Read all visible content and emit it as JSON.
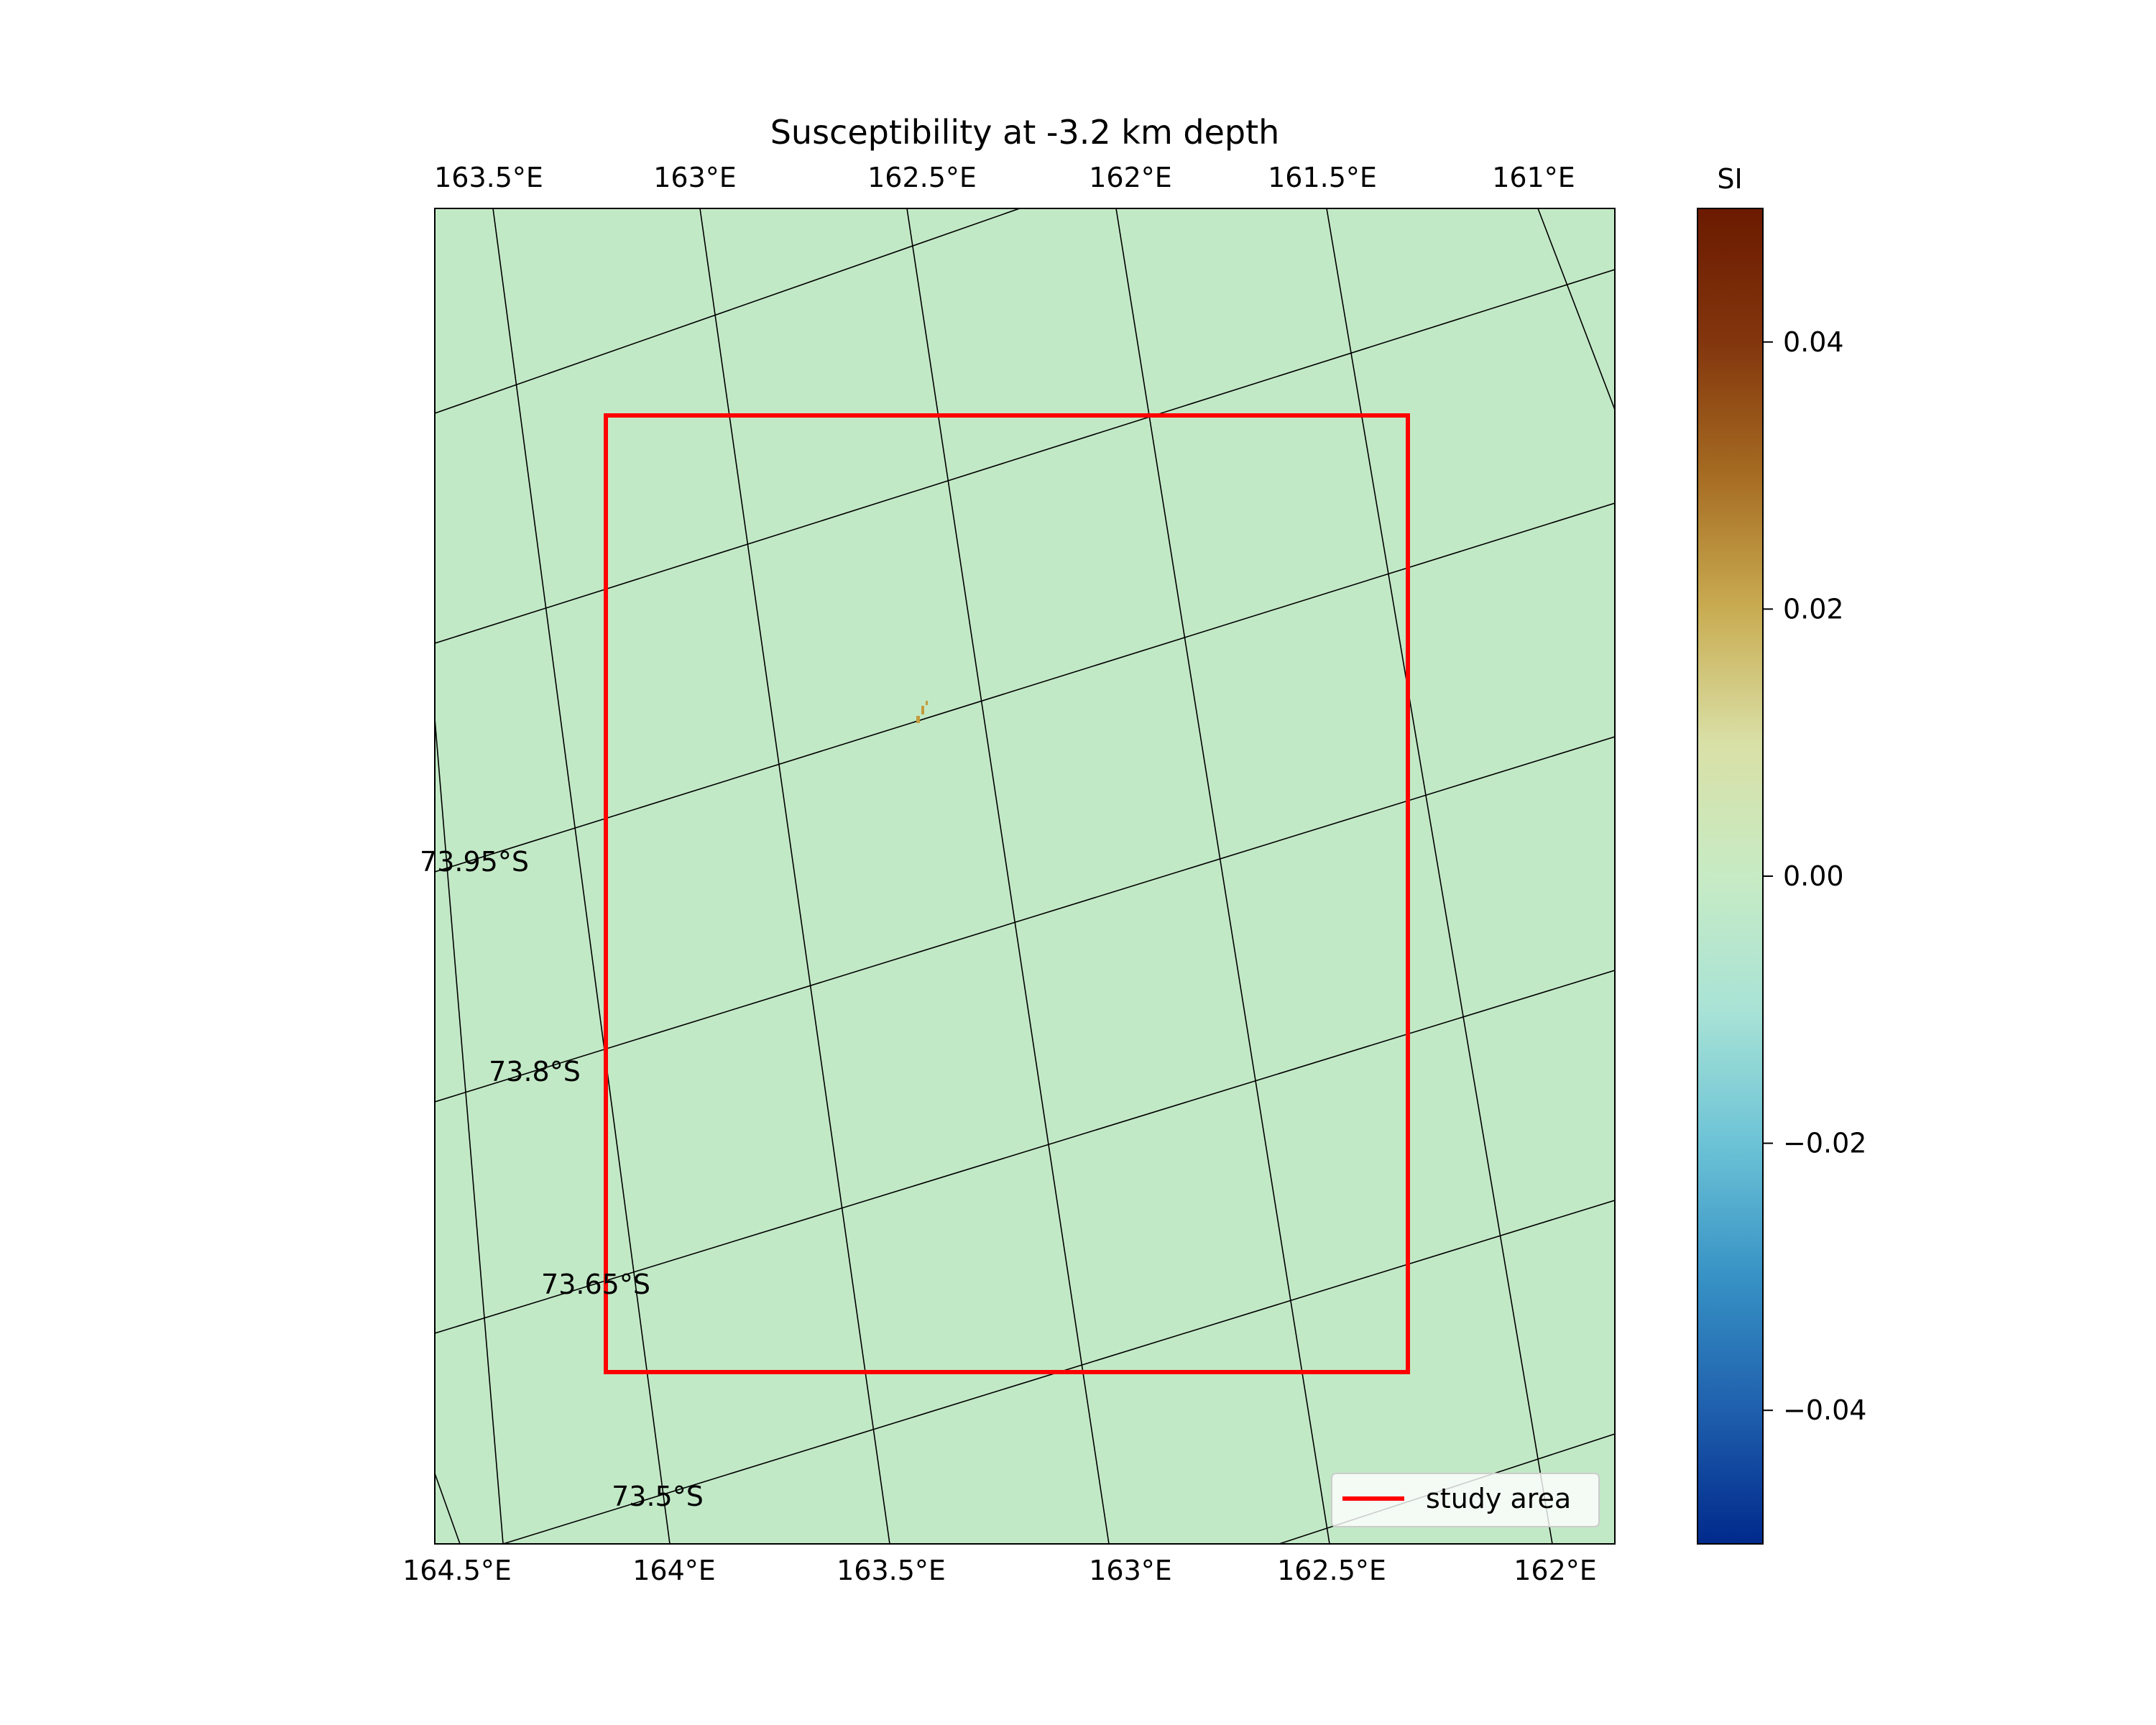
{
  "title": "Susceptibility at -3.2 km depth",
  "map": {
    "top_lon_labels": [
      "163.5°E",
      "163°E",
      "162.5°E",
      "162°E",
      "161.5°E",
      "161°E"
    ],
    "bottom_lon_labels": [
      "164.5°E",
      "164°E",
      "163.5°E",
      "163°E",
      "162.5°E",
      "162°E"
    ],
    "lat_labels": [
      "73.95°S",
      "73.8°S",
      "73.65°S",
      "73.5°S"
    ],
    "background_color": "#c2e9c6",
    "gridline_color": "#000000",
    "study_area_color": "#ff0000",
    "anomaly_color": "#c49a3c"
  },
  "legend": {
    "label": "study area"
  },
  "colorbar": {
    "label": "SI",
    "ticks": [
      {
        "value": 0.04,
        "label": "0.04"
      },
      {
        "value": 0.02,
        "label": "0.02"
      },
      {
        "value": 0.0,
        "label": "0.00"
      },
      {
        "value": -0.02,
        "label": "−0.02"
      },
      {
        "value": -0.04,
        "label": "−0.04"
      }
    ],
    "vmin": -0.05,
    "vmax": 0.05,
    "colormap_stops": [
      "#002a8c",
      "#1f5fad",
      "#3792c5",
      "#6cc3d6",
      "#a9e3d6",
      "#c7ebc4",
      "#d9e0a6",
      "#c9ac52",
      "#a66c22",
      "#83360d",
      "#6b1a00"
    ]
  }
}
